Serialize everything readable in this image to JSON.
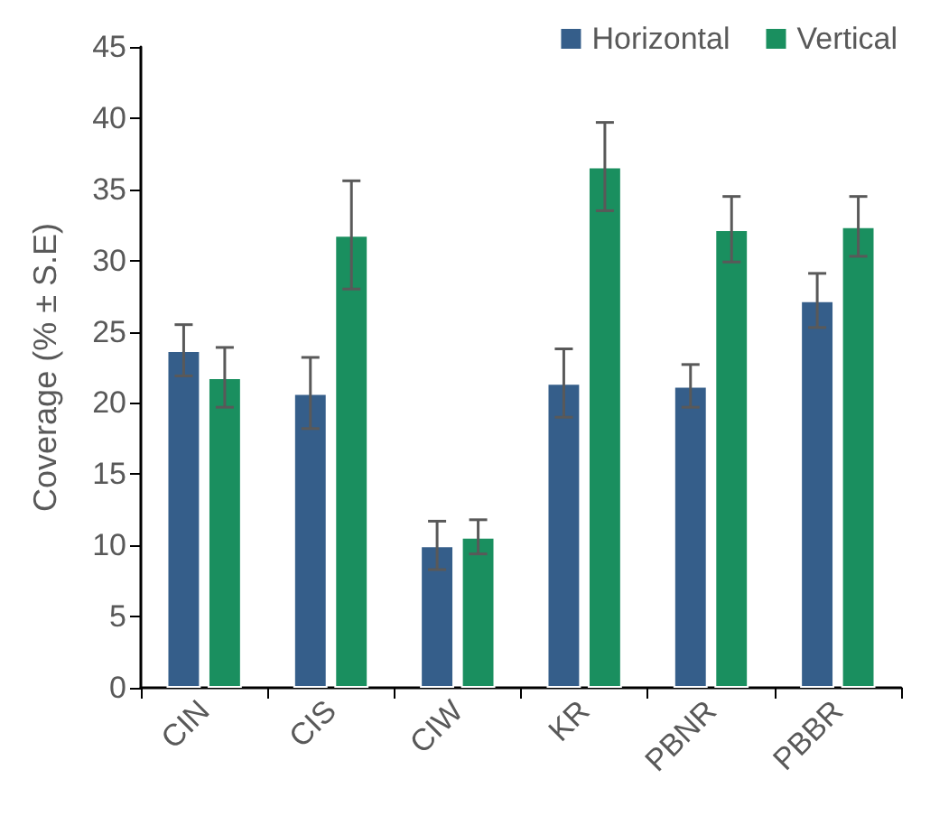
{
  "chart_data": {
    "type": "bar",
    "ylabel": "Coverage (% ± S.E)",
    "categories": [
      "CIN",
      "CIS",
      "CIW",
      "KR",
      "PBNR",
      "PBBR"
    ],
    "series": [
      {
        "name": "Horizontal",
        "color": "#355e8a",
        "values": [
          23.7,
          20.7,
          10.0,
          21.4,
          21.2,
          27.2
        ],
        "errors": [
          1.8,
          2.5,
          1.7,
          2.4,
          1.5,
          1.9
        ]
      },
      {
        "name": "Vertical",
        "color": "#1a8f5f",
        "values": [
          21.8,
          31.8,
          10.6,
          36.6,
          32.2,
          32.4
        ],
        "errors": [
          2.1,
          3.8,
          1.2,
          3.1,
          2.3,
          2.1
        ]
      }
    ],
    "ylim": [
      0,
      45
    ],
    "yticks": [
      0,
      5,
      10,
      15,
      20,
      25,
      30,
      35,
      40,
      45
    ],
    "grid": false,
    "legend": "top right"
  }
}
